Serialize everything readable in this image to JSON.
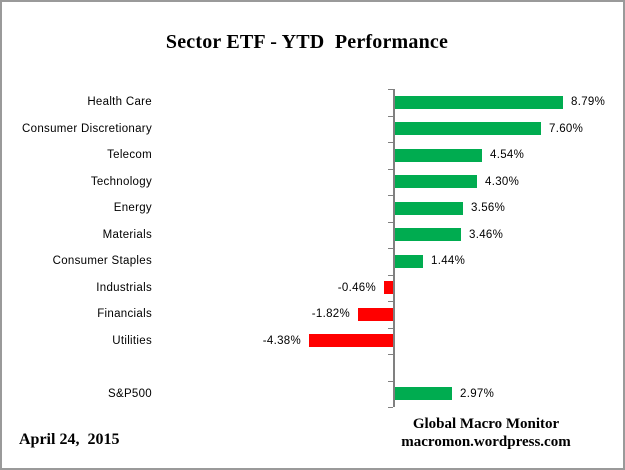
{
  "title": "Sector ETF - YTD  Performance",
  "footer": {
    "date": "April 24,  2015",
    "source_line1": "Global Macro Monitor",
    "source_line2": "macromon.wordpress.com"
  },
  "chart_data": {
    "type": "bar",
    "orientation": "horizontal",
    "title": "Sector ETF - YTD  Performance",
    "xlabel": "",
    "ylabel": "",
    "grid": false,
    "value_label_position": "outside-end",
    "xlim": [
      -4.5,
      9.5
    ],
    "categories": [
      "Health Care",
      "Consumer Discretionary",
      "Telecom",
      "Technology",
      "Energy",
      "Materials",
      "Consumer Staples",
      "Industrials",
      "Financials",
      "Utilities",
      "",
      "S&P500"
    ],
    "values": [
      8.79,
      7.6,
      4.54,
      4.3,
      3.56,
      3.46,
      1.44,
      -0.46,
      -1.82,
      -4.38,
      null,
      2.97
    ],
    "value_labels": [
      "8.79%",
      "7.60%",
      "4.54%",
      "4.30%",
      "3.56%",
      "3.46%",
      "1.44%",
      "-0.46%",
      "-1.82%",
      "-4.38%",
      "",
      "2.97%"
    ],
    "positive_color": "#00AC50",
    "negative_color": "#FF0000",
    "axis_color": "#808080",
    "text_color": "#000000"
  }
}
